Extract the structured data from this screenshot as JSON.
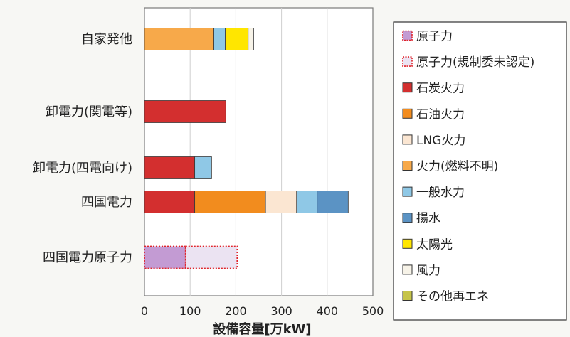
{
  "chart_data": {
    "type": "bar",
    "orientation": "horizontal",
    "stacked": true,
    "categories": [
      "自家発他",
      "卸電力(関電等)",
      "卸電力(四電向け)",
      "四国電力",
      "四国電力原子力"
    ],
    "xlabel": "設備容量[万kW]",
    "xlim": [
      0,
      500
    ],
    "xticks": [
      0,
      100,
      200,
      300,
      400,
      500
    ],
    "grid": true,
    "legend_position": "right",
    "series": [
      {
        "name": "原子力",
        "color": "#c39bd3",
        "values": [
          0,
          0,
          0,
          0,
          90
        ]
      },
      {
        "name": "原子力(規制委未認定)",
        "color": "#ebe3f2",
        "values": [
          0,
          0,
          0,
          0,
          113
        ]
      },
      {
        "name": "石炭火力",
        "color": "#d32f2f",
        "values": [
          0,
          178,
          110,
          110,
          0
        ]
      },
      {
        "name": "石油火力",
        "color": "#f28c1e",
        "values": [
          0,
          0,
          0,
          155,
          0
        ]
      },
      {
        "name": "LNG火力",
        "color": "#fbe6d2",
        "values": [
          0,
          0,
          0,
          68,
          0
        ]
      },
      {
        "name": "火力(燃料不明)",
        "color": "#f7a94a",
        "values": [
          152,
          0,
          0,
          0,
          0
        ]
      },
      {
        "name": "一般水力",
        "color": "#8fc8e6",
        "values": [
          25,
          0,
          37,
          45,
          0
        ]
      },
      {
        "name": "揚水",
        "color": "#5b93c4",
        "values": [
          0,
          0,
          0,
          68,
          0
        ]
      },
      {
        "name": "太陽光",
        "color": "#ffe600",
        "values": [
          50,
          0,
          0,
          0,
          0
        ]
      },
      {
        "name": "風力",
        "color": "#f7f3e8",
        "values": [
          12,
          0,
          0,
          0,
          0
        ]
      },
      {
        "name": "その他再エネ",
        "color": "#c6c44a",
        "values": [
          0,
          0,
          0,
          0,
          0
        ]
      }
    ]
  }
}
